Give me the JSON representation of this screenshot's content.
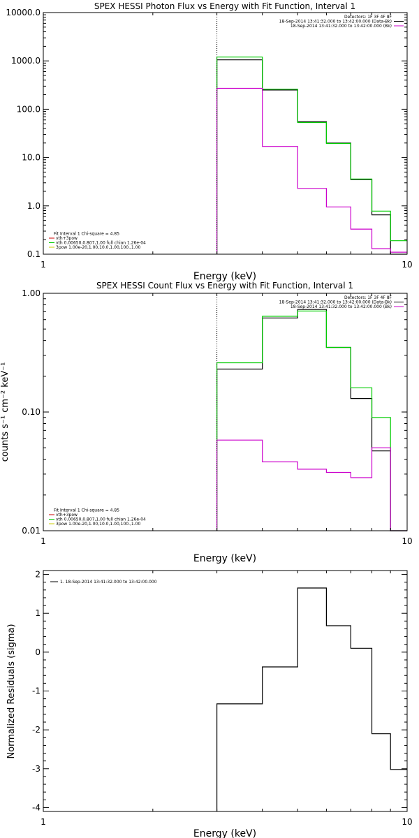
{
  "chart_data": [
    {
      "type": "line",
      "title": "SPEX HESSI Photon Flux vs Energy with Fit Function, Interval 1",
      "xlabel": "Energy (keV)",
      "ylabel": "",
      "xscale": "log",
      "yscale": "log",
      "xlim": [
        1,
        10
      ],
      "ylim": [
        0.1,
        10000
      ],
      "x_ticks": [
        {
          "value": 1,
          "label": "1"
        },
        {
          "value": 10,
          "label": "10"
        }
      ],
      "y_ticks": [
        {
          "value": 0.1,
          "label": "0.1"
        },
        {
          "value": 1,
          "label": "1.0"
        },
        {
          "value": 10,
          "label": "10.0"
        },
        {
          "value": 100,
          "label": "100.0"
        },
        {
          "value": 1000,
          "label": "1000.0"
        },
        {
          "value": 10000,
          "label": "10000.0"
        }
      ],
      "vline": {
        "x": 3.0,
        "style": "dotted",
        "color": "#000000"
      },
      "legend_top": {
        "placement": "top-right",
        "lines": [
          {
            "text": "Detectors: 1F 3F 4F 8F",
            "color": ""
          },
          {
            "text": "18-Sep-2014 13:41:32.000 to 13:42:00.000 (Data-Bk)",
            "color": "#000000"
          },
          {
            "text": "18-Sep-2014 13:41:32.000 to 13:42:00.000 (Bk)",
            "color": "#cc00cc"
          }
        ]
      },
      "legend_bottom": {
        "placement": "bottom-left",
        "lines": [
          {
            "text": "Fit Interval 1   Chi-square = 4.85",
            "color": ""
          },
          {
            "text": "vth+3pow",
            "color": "#cc0000"
          },
          {
            "text": "vth 0.00650,0.807,1.00  full chian 1.26e-04",
            "color": "#00cc00"
          },
          {
            "text": "3pow 1.00e-20,1.00,10.0,1.00,100.,1.00",
            "color": "#cccc00"
          }
        ]
      },
      "series": [
        {
          "color": "#000000",
          "edges": [
            3,
            4,
            5,
            6,
            7,
            8,
            9,
            10
          ],
          "values": [
            1050,
            250,
            55,
            20,
            3.5,
            0.65,
            0.1
          ]
        },
        {
          "color": "#00cc00",
          "edges": [
            3,
            4,
            5,
            6,
            7,
            8,
            9,
            10
          ],
          "values": [
            1200,
            260,
            53,
            19.5,
            3.6,
            0.78,
            0.19
          ]
        },
        {
          "color": "#cc00cc",
          "edges": [
            3,
            4,
            5,
            6,
            7,
            8,
            9,
            10
          ],
          "values": [
            270,
            17,
            2.3,
            0.95,
            0.33,
            0.13,
            0.11
          ]
        }
      ]
    },
    {
      "type": "line",
      "title": "SPEX HESSI Count Flux vs Energy with Fit Function, Interval 1",
      "xlabel": "Energy (keV)",
      "ylabel": "counts s⁻¹ cm⁻² keV⁻¹",
      "xscale": "log",
      "yscale": "log",
      "xlim": [
        1,
        10
      ],
      "ylim": [
        0.01,
        1
      ],
      "x_ticks": [
        {
          "value": 1,
          "label": "1"
        },
        {
          "value": 10,
          "label": "10"
        }
      ],
      "y_ticks": [
        {
          "value": 0.01,
          "label": "0.01"
        },
        {
          "value": 0.1,
          "label": "0.10"
        },
        {
          "value": 1,
          "label": "1.00"
        }
      ],
      "vline": {
        "x": 3.0,
        "style": "dotted",
        "color": "#000000"
      },
      "legend_top": {
        "placement": "top-right",
        "lines": [
          {
            "text": "Detectors: 1F 3F 4F 8F",
            "color": ""
          },
          {
            "text": "18-Sep-2014 13:41:32.000 to 13:42:00.000 (Data-Bk)",
            "color": "#000000"
          },
          {
            "text": "18-Sep-2014 13:41:32.000 to 13:42:00.000 (Bk)",
            "color": "#cc00cc"
          }
        ]
      },
      "legend_bottom": {
        "placement": "bottom-left",
        "lines": [
          {
            "text": "Fit Interval 1   Chi-square = 4.85",
            "color": ""
          },
          {
            "text": "vth+3pow",
            "color": "#cc0000"
          },
          {
            "text": "vth 0.00650,0.807,1.00  full chian 1.26e-04",
            "color": "#00cc00"
          },
          {
            "text": "3pow 1.00e-20,1.00,10.0,1.00,100.,1.00",
            "color": "#cccc00"
          }
        ]
      },
      "series": [
        {
          "color": "#000000",
          "edges": [
            3,
            4,
            5,
            6,
            7,
            8,
            9,
            10
          ],
          "values": [
            0.23,
            0.62,
            0.73,
            0.35,
            0.13,
            0.047,
            0.01
          ]
        },
        {
          "color": "#00cc00",
          "edges": [
            3,
            4,
            5,
            6,
            7,
            8,
            9,
            10
          ],
          "values": [
            0.26,
            0.64,
            0.71,
            0.35,
            0.16,
            0.09,
            0.01
          ]
        },
        {
          "color": "#cc00cc",
          "edges": [
            3,
            4,
            5,
            6,
            7,
            8,
            9,
            10
          ],
          "values": [
            0.058,
            0.038,
            0.033,
            0.031,
            0.028,
            0.05,
            0.01
          ]
        }
      ]
    },
    {
      "type": "line",
      "title": "",
      "xlabel": "Energy (keV)",
      "ylabel": "Normalized Residuals (sigma)",
      "xscale": "log",
      "yscale": "linear",
      "xlim": [
        1,
        10
      ],
      "ylim": [
        -4.1,
        2.1
      ],
      "x_ticks": [
        {
          "value": 1,
          "label": "1"
        },
        {
          "value": 10,
          "label": "10"
        }
      ],
      "y_ticks": [
        {
          "value": -4,
          "label": "-4"
        },
        {
          "value": -3,
          "label": "-3"
        },
        {
          "value": -2,
          "label": "-2"
        },
        {
          "value": -1,
          "label": "-1"
        },
        {
          "value": 0,
          "label": "0"
        },
        {
          "value": 1,
          "label": "1"
        },
        {
          "value": 2,
          "label": "2"
        }
      ],
      "legend_top": {
        "placement": "top-left",
        "lines": [
          {
            "text": "1. 18-Sep-2014 13:41:32.000 to 13:42:00.000",
            "color": "#000000"
          }
        ]
      },
      "series": [
        {
          "color": "#000000",
          "edges": [
            3,
            4,
            5,
            6,
            7,
            8,
            9,
            10
          ],
          "values": [
            -1.33,
            -0.38,
            1.65,
            0.68,
            0.1,
            -2.1,
            -3.02
          ]
        }
      ]
    }
  ]
}
